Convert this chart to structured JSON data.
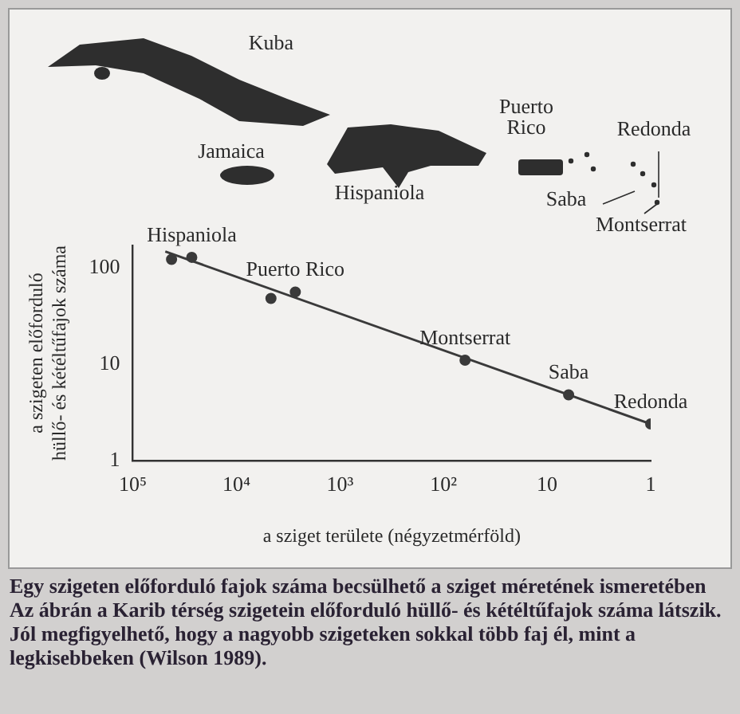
{
  "chart_data": {
    "type": "scatter",
    "title": "Egy szigeten előforduló fajok száma becsülhető a sziget méretének ismeretében",
    "subtitle": "Az ábrán a Karib térség szigetein előforduló hüllő- és kétéltűfajok száma látszik. Jól megfigyelhető, hogy a nagyobb szigeteken sokkal több faj él, mint a legkisebbeken (Wilson 1989).",
    "xlabel": "a sziget területe (négyzetmérföld)",
    "ylabel": "a szigeten előforduló hüllő- és kétéltűfajok száma",
    "log": "xy",
    "xlim": [
      100000,
      1
    ],
    "xticks": [
      {
        "value": 100000,
        "label": "10⁵"
      },
      {
        "value": 10000,
        "label": "10⁴"
      },
      {
        "value": 1000,
        "label": "10³"
      },
      {
        "value": 100,
        "label": "10²"
      },
      10,
      1
    ],
    "ylim": [
      1,
      170
    ],
    "yticks": [
      1,
      10,
      100
    ],
    "grid": false,
    "series": [
      {
        "color": "#3a3a3a",
        "marker": "circle",
        "x": [
          42300,
          27000,
          4640,
          2700,
          62,
          6.2,
          1
        ],
        "values": [
          122,
          128,
          48,
          56,
          11,
          4.8,
          2.4
        ]
      },
      {
        "type": "line",
        "color": "#3a3a3a",
        "x": [
          48600,
          1
        ],
        "values": [
          147,
          2.4
        ]
      }
    ],
    "annotations": [
      {
        "text": "Hispaniola",
        "x": 27000,
        "y": 128
      },
      {
        "text": "Puerto Rico",
        "x": 2700,
        "y": 56
      },
      {
        "text": "Montserrat",
        "x": 62,
        "y": 11
      },
      {
        "text": "Saba",
        "x": 6.2,
        "y": 4.8
      },
      {
        "text": "Redonda",
        "x": 1,
        "y": 2.4
      },
      "Kuba",
      "Puerto Rico",
      "Jamaica",
      "Hispaniola",
      "Redonda",
      "Saba",
      "Montserrat"
    ]
  }
}
